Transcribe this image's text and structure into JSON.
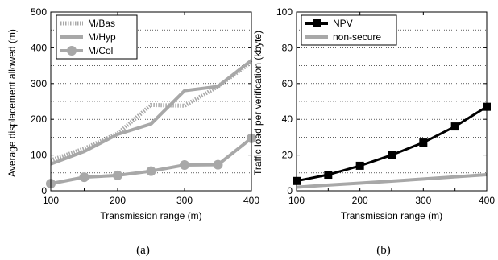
{
  "chart_data": [
    {
      "type": "line",
      "caption": "(a)",
      "xlabel": "Transmission range (m)",
      "ylabel": "Average displacement allowed (m)",
      "xlim": [
        100,
        400
      ],
      "ylim": [
        0,
        500
      ],
      "xticks": [
        "100",
        "200",
        "300",
        "400"
      ],
      "yticks": [
        "0",
        "100",
        "200",
        "300",
        "400",
        "500"
      ],
      "grid": true,
      "legend_position": "top-left",
      "x": [
        100,
        150,
        200,
        250,
        300,
        350,
        400
      ],
      "series": [
        {
          "name": "M/Bas",
          "style": "dotted",
          "color": "#a8a8a8",
          "values": [
            85,
            118,
            160,
            240,
            238,
            292,
            360
          ]
        },
        {
          "name": "M/Hyp",
          "style": "solid",
          "color": "#a8a8a8",
          "values": [
            75,
            110,
            158,
            187,
            280,
            292,
            365
          ]
        },
        {
          "name": "M/Col",
          "style": "solid-circle",
          "color": "#a8a8a8",
          "values": [
            20,
            38,
            43,
            55,
            72,
            73,
            147
          ]
        }
      ]
    },
    {
      "type": "line",
      "caption": "(b)",
      "xlabel": "Transmission range (m)",
      "ylabel": "Traffic load per verification (kbyte)",
      "xlim": [
        100,
        400
      ],
      "ylim": [
        0,
        100
      ],
      "xticks": [
        "100",
        "200",
        "300",
        "400"
      ],
      "yticks": [
        "0",
        "20",
        "40",
        "60",
        "80",
        "100"
      ],
      "grid": true,
      "legend_position": "top-left",
      "x": [
        100,
        150,
        200,
        250,
        300,
        350,
        400
      ],
      "series": [
        {
          "name": "NPV",
          "style": "solid-square",
          "color": "#000000",
          "values": [
            5.5,
            9,
            14,
            20,
            27,
            36,
            47
          ]
        },
        {
          "name": "non-secure",
          "style": "solid",
          "color": "#a8a8a8",
          "values": [
            2,
            3.2,
            4.3,
            5.4,
            6.6,
            7.8,
            9
          ]
        }
      ]
    }
  ]
}
